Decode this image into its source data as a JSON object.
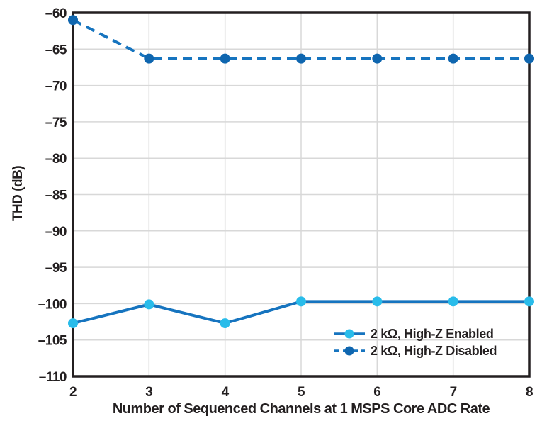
{
  "chart_data": {
    "type": "line",
    "title": "",
    "xlabel": "Number of Sequenced Channels at 1 MSPS Core ADC Rate",
    "ylabel": "THD (dB)",
    "x": [
      2,
      3,
      4,
      5,
      6,
      7,
      8
    ],
    "x_ticks": [
      2,
      3,
      4,
      5,
      6,
      7,
      8
    ],
    "y_ticks": [
      -60,
      -65,
      -70,
      -75,
      -80,
      -85,
      -90,
      -95,
      -100,
      -105,
      -110
    ],
    "xlim": [
      2,
      8
    ],
    "ylim": [
      -110,
      -60
    ],
    "grid": true,
    "legend_position": "inside-bottom-right",
    "series": [
      {
        "name": "2 kΩ, High-Z Enabled",
        "line_style": "solid",
        "line_color": "#1674BF",
        "marker_color": "#29BCEA",
        "values": [
          -102.7,
          -100.1,
          -102.7,
          -99.7,
          -99.7,
          -99.7,
          -99.7
        ]
      },
      {
        "name": "2 kΩ, High-Z Disabled",
        "line_style": "dashed",
        "line_color": "#1674BF",
        "marker_color": "#0F66AF",
        "values": [
          -61.0,
          -66.3,
          -66.3,
          -66.3,
          -66.3,
          -66.3,
          -66.3
        ]
      }
    ],
    "colors": {
      "axis_frame": "#231F20",
      "gridline": "#D8D8D8",
      "text": "#231F20",
      "background": "#FFFFFF"
    }
  }
}
